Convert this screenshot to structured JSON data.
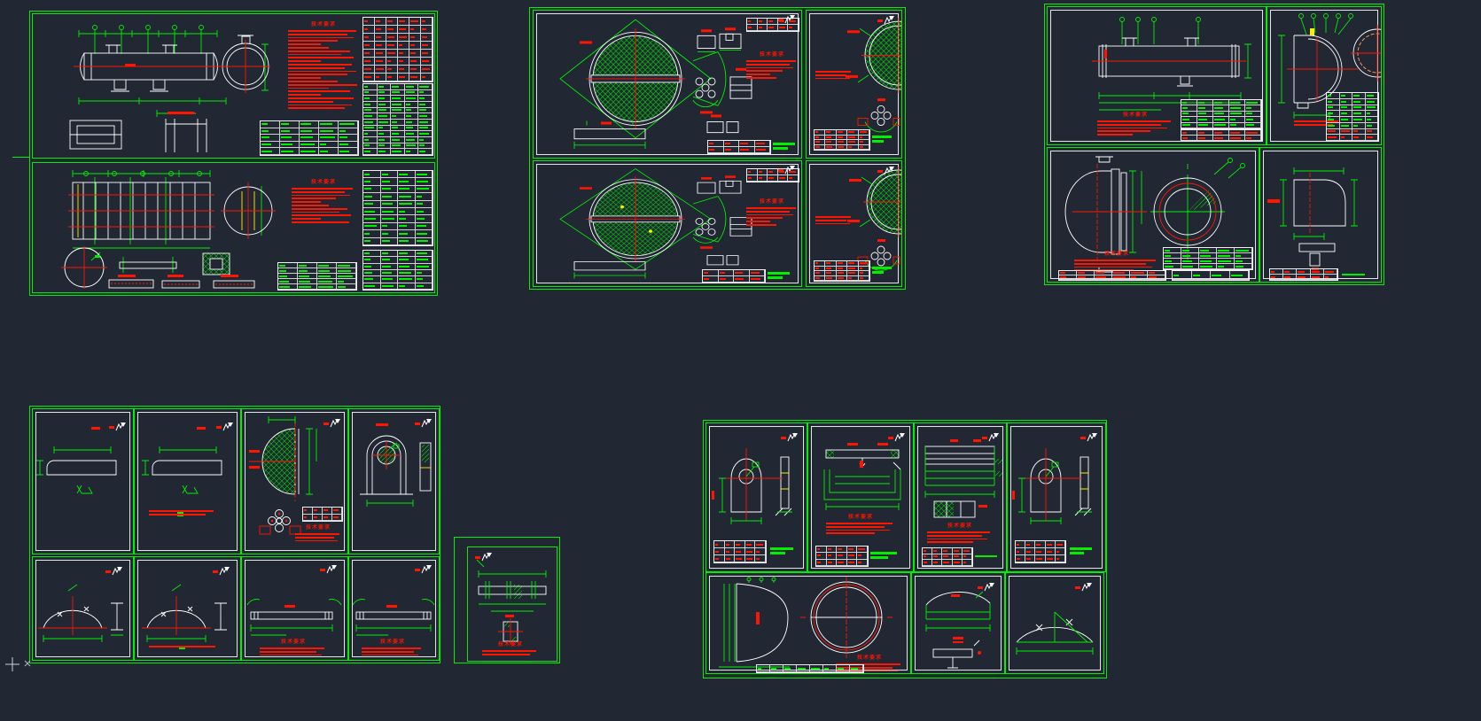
{
  "workspace": {
    "background": "#212733"
  },
  "palette": {
    "line_green": "#00f000",
    "annotation_red": "#ff1500",
    "geometry_white": "#ffffff",
    "highlight_yellow": "#ffee00"
  },
  "notes_title_default": "技术要求",
  "sheets": {
    "a1": {
      "notes": {
        "title": "技术要求",
        "lines": 24
      },
      "tables": {
        "rev": {
          "rows": 8,
          "cols": 6,
          "ink": "red"
        },
        "bom": {
          "rows": 12,
          "cols": 5,
          "ink": "green"
        },
        "aux": {
          "rows": 5,
          "cols": 5,
          "ink": "green"
        }
      }
    },
    "a2": {
      "notes": {
        "title": "技术要求",
        "lines": 11
      },
      "tables": {
        "bom": {
          "rows": 10,
          "cols": 4,
          "ink": "green"
        },
        "mid": {
          "rows": 5,
          "cols": 4,
          "ink": "green"
        },
        "aux": {
          "rows": 6,
          "cols": 4,
          "ink": "green"
        }
      }
    },
    "b1": {
      "notes": {
        "title": "技术要求",
        "lines": 6
      },
      "tables": {
        "spec": {
          "rows": 2,
          "cols": 5,
          "ink": "red"
        },
        "strip": {
          "rows": 2,
          "cols": 4,
          "ink": "red"
        }
      }
    },
    "b2": {
      "notes": {
        "title": "技术要求",
        "lines": 6
      },
      "tables": {
        "spec": {
          "rows": 2,
          "cols": 5,
          "ink": "red"
        },
        "strip": {
          "rows": 2,
          "cols": 4,
          "ink": "red"
        }
      }
    },
    "b3": {
      "notes": {
        "title": "",
        "lines": 3
      },
      "tables": {
        "strip": {
          "rows": 4,
          "cols": 5,
          "ink": "red"
        }
      }
    },
    "b4": {
      "notes": {
        "title": "",
        "lines": 3
      },
      "tables": {
        "strip": {
          "rows": 4,
          "cols": 5,
          "ink": "red"
        }
      }
    },
    "c1": {
      "notes": {
        "title": "技术要求",
        "lines": 5
      },
      "tables": {
        "bom": {
          "rows": 5,
          "cols": 5,
          "ink": "green"
        },
        "sub": {
          "rows": 2,
          "cols": 5,
          "ink": "red"
        }
      }
    },
    "c2": {
      "notes": {
        "title": "",
        "lines": 2
      },
      "tables": {
        "bom": {
          "rows": 8,
          "cols": 4,
          "ink": "mix"
        }
      }
    },
    "c3": {
      "notes": {
        "title": "技术要求",
        "lines": 4
      },
      "tables": {
        "bom": {
          "rows": 4,
          "cols": 5,
          "ink": "green"
        },
        "strip": {
          "rows": 2,
          "cols": 6,
          "ink": "red"
        },
        "corner": {
          "rows": 1,
          "cols": 4,
          "ink": "green"
        }
      }
    },
    "c4": {
      "tables": {
        "strip": {
          "rows": 2,
          "cols": 5,
          "ink": "red"
        }
      }
    },
    "d2": {
      "notes": {
        "title": "",
        "lines": 2
      }
    },
    "d3": {
      "notes": {
        "title": "技术要求",
        "lines": 3
      },
      "tables": {
        "mini": {
          "rows": 2,
          "cols": 4,
          "ink": "red"
        }
      }
    },
    "d6": {
      "notes": {
        "title": "",
        "lines": 1
      }
    },
    "d7": {
      "notes": {
        "title": "技术要求",
        "lines": 3
      }
    },
    "d8": {
      "notes": {
        "title": "技术要求",
        "lines": 3
      }
    },
    "d9": {
      "notes": {
        "title": "技术要求",
        "lines": 2
      }
    },
    "e1": {
      "tables": {
        "title": {
          "rows": 3,
          "cols": 5,
          "ink": "red"
        }
      }
    },
    "e2": {
      "notes": {
        "title": "技术要求",
        "lines": 4
      },
      "tables": {
        "title": {
          "rows": 3,
          "cols": 5,
          "ink": "red"
        }
      }
    },
    "e3": {
      "notes": {
        "title": "技术要求",
        "lines": 4
      },
      "tables": {
        "title": {
          "rows": 3,
          "cols": 5,
          "ink": "red"
        }
      }
    },
    "e4": {
      "tables": {
        "title": {
          "rows": 3,
          "cols": 5,
          "ink": "red"
        }
      }
    },
    "e5": {
      "notes": {
        "title": "技术要求",
        "lines": 3
      },
      "tables": {
        "strip": {
          "rows": 1,
          "cols": 8,
          "ink": "green"
        }
      }
    }
  }
}
